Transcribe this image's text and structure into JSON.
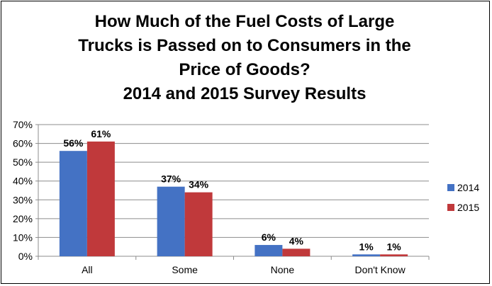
{
  "chart_data": {
    "type": "bar",
    "title_lines": [
      "How Much of the Fuel Costs of Large",
      "Trucks is Passed on to Consumers in the",
      "Price of Goods?",
      "2014 and 2015 Survey Results"
    ],
    "categories": [
      "All",
      "Some",
      "None",
      "Don't Know"
    ],
    "series": [
      {
        "name": "2014",
        "color": "#4472C4",
        "values": [
          56,
          37,
          6,
          1
        ],
        "labels": [
          "56%",
          "37%",
          "6%",
          "1%"
        ]
      },
      {
        "name": "2015",
        "color": "#C0393B",
        "values": [
          61,
          34,
          4,
          1
        ],
        "labels": [
          "61%",
          "34%",
          "4%",
          "1%"
        ]
      }
    ],
    "ylim": [
      0,
      70
    ],
    "yticks": [
      0,
      10,
      20,
      30,
      40,
      50,
      60,
      70
    ],
    "ytick_labels": [
      "0%",
      "10%",
      "20%",
      "30%",
      "40%",
      "50%",
      "60%",
      "70%"
    ],
    "grid": true,
    "legend_position": "right",
    "xlabel": "",
    "ylabel": ""
  }
}
